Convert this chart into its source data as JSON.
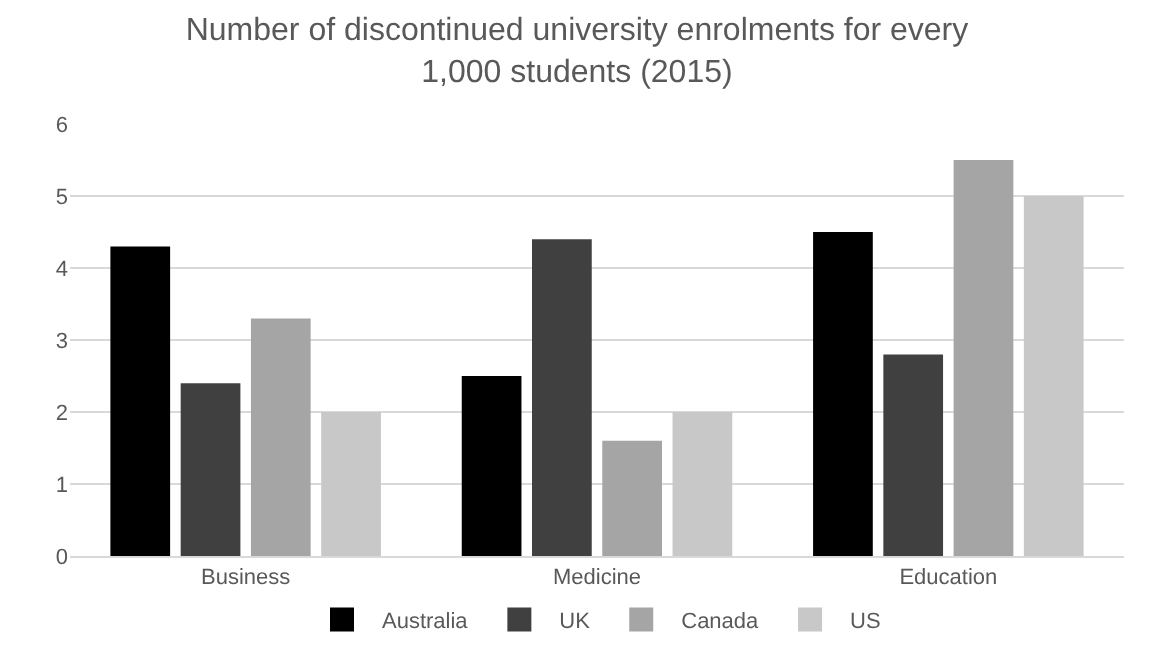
{
  "chart_data": {
    "type": "bar",
    "title": "Number of discontinued university enrolments for every 1,000 students (2015)",
    "categories": [
      "Business",
      "Medicine",
      "Education"
    ],
    "series": [
      {
        "name": "Australia",
        "color": "#000000",
        "values": [
          4.3,
          2.5,
          4.5
        ]
      },
      {
        "name": "UK",
        "color": "#404040",
        "values": [
          2.4,
          4.4,
          2.8
        ]
      },
      {
        "name": "Canada",
        "color": "#a5a5a5",
        "values": [
          3.3,
          1.6,
          5.5
        ]
      },
      {
        "name": "US",
        "color": "#c8c8c8",
        "values": [
          2.0,
          2.0,
          5.0
        ]
      }
    ],
    "ylim": [
      0,
      6
    ],
    "yticks": [
      0,
      1,
      2,
      3,
      4,
      5,
      6
    ],
    "grid": "y",
    "legend": "bottom"
  }
}
